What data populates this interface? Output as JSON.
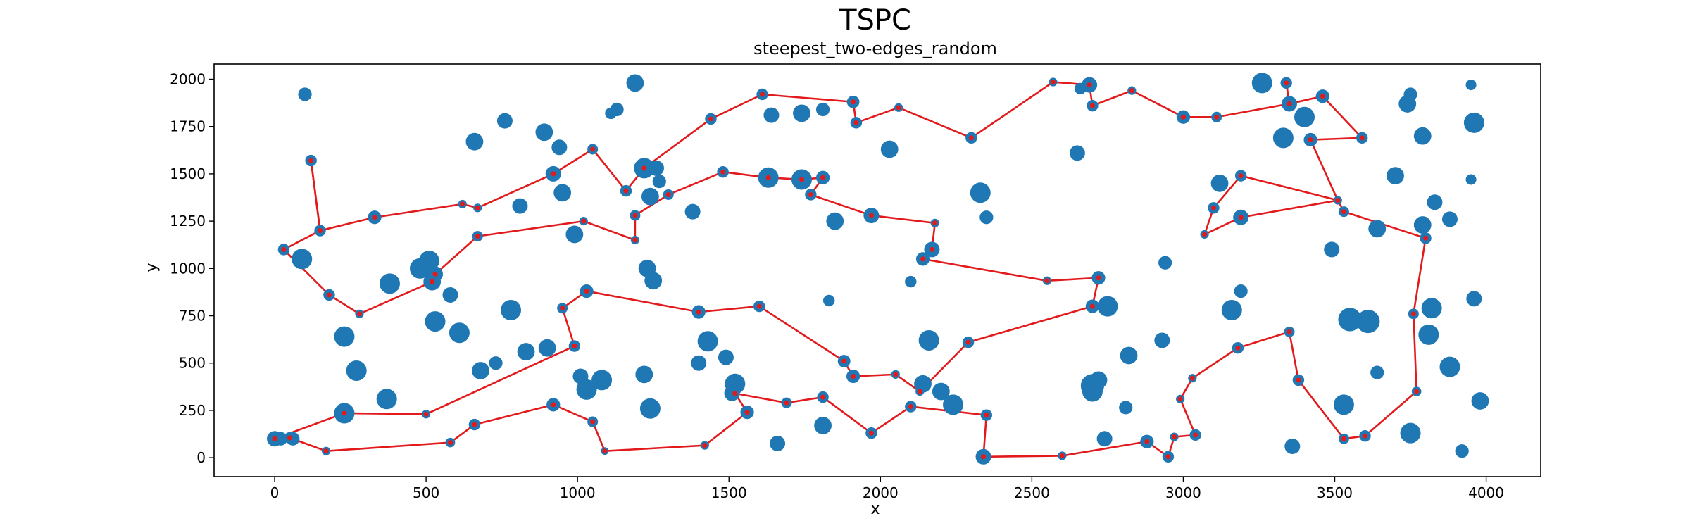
{
  "chart_data": {
    "type": "scatter",
    "title": "TSPC",
    "subtitle": "steepest_two-edges_random",
    "xlabel": "x",
    "ylabel": "y",
    "xlim": [
      -200,
      4180
    ],
    "ylim": [
      -100,
      2080
    ],
    "xticks": [
      0,
      500,
      1000,
      1500,
      2000,
      2500,
      3000,
      3500,
      4000
    ],
    "yticks": [
      0,
      250,
      500,
      750,
      1000,
      1250,
      1500,
      1750,
      2000
    ],
    "grid": false,
    "colors": {
      "points": "#1f77b4",
      "route": "#e31a1c"
    },
    "points": [
      [
        0,
        100,
        1
      ],
      [
        50,
        105,
        0.6
      ],
      [
        170,
        35,
        0.3
      ],
      [
        580,
        80,
        0.4
      ],
      [
        660,
        175,
        0.6
      ],
      [
        920,
        280,
        0.8
      ],
      [
        1050,
        190,
        0.5
      ],
      [
        1090,
        35,
        0.2
      ],
      [
        1420,
        65,
        0.3
      ],
      [
        1560,
        240,
        0.8
      ],
      [
        1520,
        390,
        1.5
      ],
      [
        1510,
        340,
        1.0
      ],
      [
        1690,
        290,
        0.5
      ],
      [
        1810,
        320,
        0.6
      ],
      [
        1970,
        130,
        0.6
      ],
      [
        2100,
        270,
        0.6
      ],
      [
        2350,
        225,
        0.6
      ],
      [
        2340,
        5,
        1
      ],
      [
        2600,
        10,
        0.3
      ],
      [
        2880,
        85,
        0.8
      ],
      [
        2950,
        5,
        0.6
      ],
      [
        2970,
        110,
        0.3
      ],
      [
        3040,
        120,
        0.6
      ],
      [
        2990,
        310,
        0.3
      ],
      [
        3030,
        420,
        0.3
      ],
      [
        3180,
        580,
        0.6
      ],
      [
        3350,
        665,
        0.5
      ],
      [
        3380,
        410,
        0.6
      ],
      [
        3530,
        100,
        0.5
      ],
      [
        3600,
        115,
        0.6
      ],
      [
        3770,
        350,
        0.4
      ],
      [
        3760,
        760,
        0.5
      ],
      [
        3800,
        1160,
        0.6
      ],
      [
        3530,
        1300,
        0.5
      ],
      [
        3510,
        1360,
        0.3
      ],
      [
        3190,
        1270,
        1
      ],
      [
        3070,
        1180,
        0.3
      ],
      [
        3100,
        1320,
        0.6
      ],
      [
        3190,
        1490,
        0.6
      ],
      [
        3420,
        1680,
        0.8
      ],
      [
        3590,
        1690,
        0.6
      ],
      [
        3460,
        1910,
        0.8
      ],
      [
        3350,
        1870,
        1
      ],
      [
        3340,
        1980,
        0.6
      ],
      [
        3110,
        1800,
        0.5
      ],
      [
        3000,
        1800,
        0.8
      ],
      [
        2830,
        1940,
        0.3
      ],
      [
        2700,
        1860,
        0.6
      ],
      [
        2690,
        1970,
        1
      ],
      [
        2660,
        1950,
        0.6
      ],
      [
        2570,
        1985,
        0.3
      ],
      [
        2300,
        1690,
        0.6
      ],
      [
        2060,
        1850,
        0.3
      ],
      [
        1920,
        1770,
        0.6
      ],
      [
        1910,
        1880,
        0.7
      ],
      [
        1610,
        1920,
        0.6
      ],
      [
        1440,
        1790,
        0.6
      ],
      [
        1220,
        1530,
        1.5
      ],
      [
        1160,
        1410,
        0.6
      ],
      [
        1050,
        1630,
        0.5
      ],
      [
        920,
        1500,
        1
      ],
      [
        670,
        1320,
        0.3
      ],
      [
        620,
        1340,
        0.3
      ],
      [
        330,
        1270,
        0.8
      ],
      [
        150,
        1200,
        0.6
      ],
      [
        120,
        1570,
        0.6
      ],
      [
        30,
        1100,
        0.6
      ],
      [
        180,
        860,
        0.6
      ],
      [
        280,
        760,
        0.3
      ],
      [
        520,
        930,
        1.2
      ],
      [
        530,
        970,
        1
      ],
      [
        670,
        1170,
        0.5
      ],
      [
        1020,
        1250,
        0.3
      ],
      [
        1190,
        1150,
        0.3
      ],
      [
        1190,
        1280,
        0.5
      ],
      [
        1300,
        1390,
        0.5
      ],
      [
        1480,
        1510,
        0.6
      ],
      [
        1630,
        1480,
        1.5
      ],
      [
        1740,
        1470,
        1.5
      ],
      [
        1810,
        1480,
        0.8
      ],
      [
        1770,
        1390,
        0.6
      ],
      [
        1970,
        1280,
        1
      ],
      [
        2180,
        1240,
        0.3
      ],
      [
        2170,
        1100,
        1
      ],
      [
        2140,
        1050,
        0.8
      ],
      [
        2550,
        935,
        0.3
      ],
      [
        2720,
        950,
        0.8
      ],
      [
        2700,
        800,
        0.8
      ],
      [
        2290,
        610,
        0.6
      ],
      [
        2130,
        350,
        0.3
      ],
      [
        2050,
        440,
        0.3
      ],
      [
        1910,
        430,
        0.8
      ],
      [
        1880,
        510,
        0.7
      ],
      [
        1600,
        800,
        0.6
      ],
      [
        1400,
        770,
        0.8
      ],
      [
        1030,
        880,
        0.8
      ],
      [
        950,
        790,
        0.5
      ],
      [
        990,
        590,
        0.6
      ],
      [
        500,
        230,
        0.3
      ],
      [
        230,
        235,
        1.5
      ],
      [
        100,
        1920,
        0.8
      ],
      [
        1190,
        1980,
        1.2
      ],
      [
        1130,
        1840,
        0.8
      ],
      [
        1110,
        1820,
        0.6
      ],
      [
        760,
        1780,
        1.0
      ],
      [
        660,
        1670,
        1.2
      ],
      [
        890,
        1720,
        1.2
      ],
      [
        940,
        1640,
        1.0
      ],
      [
        950,
        1400,
        1.2
      ],
      [
        810,
        1330,
        1.0
      ],
      [
        990,
        1180,
        1.2
      ],
      [
        1230,
        1000,
        1.2
      ],
      [
        1250,
        935,
        1.2
      ],
      [
        1260,
        1530,
        1.0
      ],
      [
        1270,
        1460,
        0.8
      ],
      [
        1240,
        1380,
        1.2
      ],
      [
        1380,
        1300,
        1.0
      ],
      [
        1640,
        1810,
        1.0
      ],
      [
        1740,
        1820,
        1.2
      ],
      [
        1810,
        1840,
        0.8
      ],
      [
        2030,
        1630,
        1.2
      ],
      [
        1850,
        1250,
        1.2
      ],
      [
        1830,
        830,
        0.6
      ],
      [
        2100,
        930,
        0.6
      ],
      [
        2330,
        1400,
        1.5
      ],
      [
        2350,
        1270,
        0.8
      ],
      [
        2650,
        1610,
        1.0
      ],
      [
        2940,
        1030,
        0.8
      ],
      [
        3120,
        1450,
        1.2
      ],
      [
        3190,
        880,
        0.8
      ],
      [
        3160,
        780,
        1.5
      ],
      [
        3330,
        1690,
        1.5
      ],
      [
        3400,
        1800,
        1.5
      ],
      [
        3260,
        1980,
        1.5
      ],
      [
        3700,
        1490,
        1.2
      ],
      [
        3740,
        1870,
        1.2
      ],
      [
        3750,
        1920,
        0.8
      ],
      [
        3950,
        1970,
        0.5
      ],
      [
        3960,
        1770,
        1.5
      ],
      [
        3950,
        1470,
        0.5
      ],
      [
        3790,
        1700,
        1.2
      ],
      [
        3790,
        1230,
        1.2
      ],
      [
        3830,
        1350,
        1.0
      ],
      [
        3880,
        1260,
        1.0
      ],
      [
        3640,
        1210,
        1.2
      ],
      [
        3490,
        1100,
        1.0
      ],
      [
        3550,
        730,
        1.8
      ],
      [
        3610,
        720,
        1.8
      ],
      [
        3820,
        790,
        1.5
      ],
      [
        3960,
        840,
        1.0
      ],
      [
        3810,
        650,
        1.5
      ],
      [
        3640,
        450,
        0.8
      ],
      [
        3880,
        480,
        1.5
      ],
      [
        3980,
        300,
        1.2
      ],
      [
        3530,
        280,
        1.5
      ],
      [
        3750,
        130,
        1.5
      ],
      [
        3920,
        35,
        0.8
      ],
      [
        3360,
        60,
        1.0
      ],
      [
        2740,
        100,
        1.0
      ],
      [
        2810,
        265,
        0.8
      ],
      [
        2720,
        410,
        1.2
      ],
      [
        2700,
        380,
        1.8
      ],
      [
        2700,
        350,
        1.5
      ],
      [
        2750,
        800,
        1.5
      ],
      [
        2820,
        540,
        1.2
      ],
      [
        2930,
        620,
        1.0
      ],
      [
        2240,
        280,
        1.5
      ],
      [
        2200,
        350,
        1.2
      ],
      [
        2160,
        620,
        1.5
      ],
      [
        2140,
        390,
        1.2
      ],
      [
        1810,
        170,
        1.2
      ],
      [
        1660,
        75,
        1.0
      ],
      [
        1400,
        500,
        1.0
      ],
      [
        1430,
        615,
        1.5
      ],
      [
        1490,
        530,
        1.0
      ],
      [
        1220,
        440,
        1.2
      ],
      [
        1240,
        260,
        1.5
      ],
      [
        1080,
        410,
        1.5
      ],
      [
        1030,
        360,
        1.5
      ],
      [
        1010,
        430,
        1.0
      ],
      [
        900,
        580,
        1.2
      ],
      [
        830,
        560,
        1.2
      ],
      [
        780,
        780,
        1.5
      ],
      [
        730,
        500,
        0.8
      ],
      [
        680,
        460,
        1.2
      ],
      [
        610,
        660,
        1.5
      ],
      [
        580,
        860,
        1.0
      ],
      [
        530,
        720,
        1.5
      ],
      [
        510,
        1040,
        1.5
      ],
      [
        480,
        1000,
        1.5
      ],
      [
        380,
        920,
        1.5
      ],
      [
        270,
        460,
        1.5
      ],
      [
        230,
        640,
        1.5
      ],
      [
        370,
        310,
        1.5
      ],
      [
        90,
        1050,
        1.5
      ],
      [
        20,
        100,
        0.8
      ],
      [
        60,
        100,
        0.8
      ]
    ],
    "route": [
      [
        0,
        100
      ],
      [
        50,
        105
      ],
      [
        170,
        35
      ],
      [
        580,
        80
      ],
      [
        660,
        175
      ],
      [
        920,
        280
      ],
      [
        1050,
        190
      ],
      [
        1090,
        35
      ],
      [
        1420,
        65
      ],
      [
        1560,
        240
      ],
      [
        1520,
        340
      ],
      [
        1690,
        290
      ],
      [
        1810,
        320
      ],
      [
        1970,
        130
      ],
      [
        2100,
        270
      ],
      [
        2350,
        225
      ],
      [
        2340,
        5
      ],
      [
        2600,
        10
      ],
      [
        2880,
        85
      ],
      [
        2950,
        5
      ],
      [
        2970,
        110
      ],
      [
        3040,
        120
      ],
      [
        2990,
        310
      ],
      [
        3030,
        420
      ],
      [
        3180,
        580
      ],
      [
        3350,
        665
      ],
      [
        3380,
        410
      ],
      [
        3530,
        100
      ],
      [
        3600,
        115
      ],
      [
        3770,
        350
      ],
      [
        3760,
        760
      ],
      [
        3800,
        1160
      ],
      [
        3530,
        1300
      ],
      [
        3510,
        1360
      ],
      [
        3190,
        1490
      ],
      [
        3100,
        1320
      ],
      [
        3070,
        1180
      ],
      [
        3190,
        1270
      ],
      [
        3510,
        1360
      ],
      [
        3420,
        1680
      ],
      [
        3590,
        1690
      ],
      [
        3460,
        1910
      ],
      [
        3350,
        1870
      ],
      [
        3340,
        1980
      ],
      [
        3350,
        1870
      ],
      [
        3110,
        1800
      ],
      [
        3000,
        1800
      ],
      [
        2830,
        1940
      ],
      [
        2700,
        1860
      ],
      [
        2690,
        1970
      ],
      [
        2570,
        1985
      ],
      [
        2300,
        1690
      ],
      [
        2060,
        1850
      ],
      [
        1920,
        1770
      ],
      [
        1910,
        1880
      ],
      [
        1610,
        1920
      ],
      [
        1440,
        1790
      ],
      [
        1220,
        1530
      ],
      [
        1160,
        1410
      ],
      [
        1050,
        1630
      ],
      [
        920,
        1500
      ],
      [
        670,
        1320
      ],
      [
        620,
        1340
      ],
      [
        330,
        1270
      ],
      [
        150,
        1200
      ],
      [
        120,
        1570
      ],
      [
        150,
        1200
      ],
      [
        30,
        1100
      ],
      [
        180,
        860
      ],
      [
        280,
        760
      ],
      [
        520,
        930
      ],
      [
        530,
        970
      ],
      [
        670,
        1170
      ],
      [
        1020,
        1250
      ],
      [
        1190,
        1150
      ],
      [
        1190,
        1280
      ],
      [
        1300,
        1390
      ],
      [
        1480,
        1510
      ],
      [
        1630,
        1480
      ],
      [
        1740,
        1470
      ],
      [
        1810,
        1480
      ],
      [
        1770,
        1390
      ],
      [
        1970,
        1280
      ],
      [
        2180,
        1240
      ],
      [
        2170,
        1100
      ],
      [
        2140,
        1050
      ],
      [
        2550,
        935
      ],
      [
        2720,
        950
      ],
      [
        2700,
        800
      ],
      [
        2290,
        610
      ],
      [
        2130,
        350
      ],
      [
        2050,
        440
      ],
      [
        1910,
        430
      ],
      [
        1880,
        510
      ],
      [
        1600,
        800
      ],
      [
        1400,
        770
      ],
      [
        1030,
        880
      ],
      [
        950,
        790
      ],
      [
        990,
        590
      ],
      [
        500,
        230
      ],
      [
        230,
        235
      ],
      [
        0,
        100
      ]
    ]
  }
}
